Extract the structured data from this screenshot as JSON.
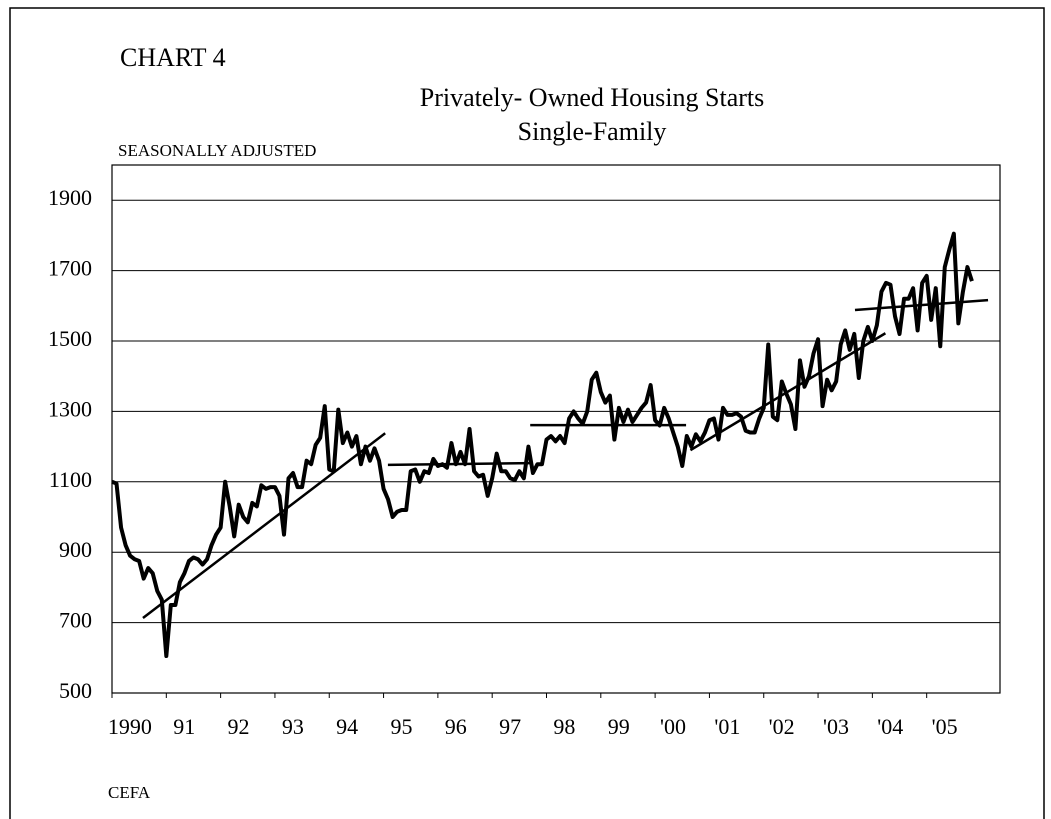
{
  "chart_data": {
    "type": "line",
    "label": "CHART 4",
    "title": "Privately- Owned Housing Starts",
    "subtitle": "Single-Family",
    "ylabel": "SEASONALLY ADJUSTED",
    "source": "CEFA",
    "xlim": [
      1990,
      2006.35
    ],
    "xticks": [
      {
        "value": 1990,
        "label": "1990"
      },
      {
        "value": 1991,
        "label": "91"
      },
      {
        "value": 1992,
        "label": "92"
      },
      {
        "value": 1993,
        "label": "93"
      },
      {
        "value": 1994,
        "label": "94"
      },
      {
        "value": 1995,
        "label": "95"
      },
      {
        "value": 1996,
        "label": "96"
      },
      {
        "value": 1997,
        "label": "97"
      },
      {
        "value": 1998,
        "label": "98"
      },
      {
        "value": 1999,
        "label": "99"
      },
      {
        "value": 2000,
        "label": "'00"
      },
      {
        "value": 2001,
        "label": "'01"
      },
      {
        "value": 2002,
        "label": "'02"
      },
      {
        "value": 2003,
        "label": "'03"
      },
      {
        "value": 2004,
        "label": "'04"
      },
      {
        "value": 2005,
        "label": "'05"
      }
    ],
    "ylim": [
      500,
      2000
    ],
    "yticks": [
      500,
      700,
      900,
      1100,
      1300,
      1500,
      1700,
      1900
    ],
    "grid": true,
    "color": "#000000",
    "x": [
      1990,
      1990.083,
      1990.167,
      1990.25,
      1990.333,
      1990.417,
      1990.5,
      1990.583,
      1990.667,
      1990.75,
      1990.833,
      1990.917,
      1991,
      1991.083,
      1991.167,
      1991.25,
      1991.333,
      1991.417,
      1991.5,
      1991.583,
      1991.667,
      1991.75,
      1991.833,
      1991.917,
      1992,
      1992.083,
      1992.167,
      1992.25,
      1992.333,
      1992.417,
      1992.5,
      1992.583,
      1992.667,
      1992.75,
      1992.833,
      1992.917,
      1993,
      1993.083,
      1993.167,
      1993.25,
      1993.333,
      1993.417,
      1993.5,
      1993.583,
      1993.667,
      1993.75,
      1993.833,
      1993.917,
      1994,
      1994.083,
      1994.167,
      1994.25,
      1994.333,
      1994.417,
      1994.5,
      1994.583,
      1994.667,
      1994.75,
      1994.833,
      1994.917,
      1995,
      1995.083,
      1995.167,
      1995.25,
      1995.333,
      1995.417,
      1995.5,
      1995.583,
      1995.667,
      1995.75,
      1995.833,
      1995.917,
      1996,
      1996.083,
      1996.167,
      1996.25,
      1996.333,
      1996.417,
      1996.5,
      1996.583,
      1996.667,
      1996.75,
      1996.833,
      1996.917,
      1997,
      1997.083,
      1997.167,
      1997.25,
      1997.333,
      1997.417,
      1997.5,
      1997.583,
      1997.667,
      1997.75,
      1997.833,
      1997.917,
      1998,
      1998.083,
      1998.167,
      1998.25,
      1998.333,
      1998.417,
      1998.5,
      1998.583,
      1998.667,
      1998.75,
      1998.833,
      1998.917,
      1999,
      1999.083,
      1999.167,
      1999.25,
      1999.333,
      1999.417,
      1999.5,
      1999.583,
      1999.667,
      1999.75,
      1999.833,
      1999.917,
      2000,
      2000.083,
      2000.167,
      2000.25,
      2000.333,
      2000.417,
      2000.5,
      2000.583,
      2000.667,
      2000.75,
      2000.833,
      2000.917,
      2001,
      2001.083,
      2001.167,
      2001.25,
      2001.333,
      2001.417,
      2001.5,
      2001.583,
      2001.667,
      2001.75,
      2001.833,
      2001.917,
      2002,
      2002.083,
      2002.167,
      2002.25,
      2002.333,
      2002.417,
      2002.5,
      2002.583,
      2002.667,
      2002.75,
      2002.833,
      2002.917,
      2003,
      2003.083,
      2003.167,
      2003.25,
      2003.333,
      2003.417,
      2003.5,
      2003.583,
      2003.667,
      2003.75,
      2003.833,
      2003.917,
      2004,
      2004.083,
      2004.167,
      2004.25,
      2004.333,
      2004.417,
      2004.5,
      2004.583,
      2004.667,
      2004.75,
      2004.833,
      2004.917,
      2005,
      2005.083,
      2005.167,
      2005.25,
      2005.333,
      2005.417,
      2005.5,
      2005.583,
      2005.667,
      2005.75,
      2005.833
    ],
    "values": [
      1100,
      1095,
      970,
      920,
      890,
      880,
      875,
      825,
      855,
      840,
      790,
      765,
      605,
      750,
      750,
      815,
      840,
      875,
      885,
      880,
      865,
      880,
      920,
      950,
      970,
      1100,
      1030,
      945,
      1035,
      1000,
      985,
      1040,
      1030,
      1090,
      1080,
      1085,
      1085,
      1060,
      950,
      1110,
      1125,
      1085,
      1085,
      1160,
      1150,
      1205,
      1225,
      1315,
      1135,
      1130,
      1305,
      1210,
      1240,
      1200,
      1230,
      1150,
      1200,
      1160,
      1195,
      1160,
      1080,
      1050,
      1000,
      1015,
      1020,
      1020,
      1130,
      1135,
      1100,
      1130,
      1125,
      1165,
      1145,
      1150,
      1140,
      1210,
      1150,
      1185,
      1150,
      1250,
      1130,
      1115,
      1120,
      1060,
      1110,
      1180,
      1130,
      1130,
      1110,
      1105,
      1130,
      1110,
      1200,
      1125,
      1150,
      1150,
      1220,
      1230,
      1215,
      1230,
      1210,
      1280,
      1300,
      1280,
      1265,
      1300,
      1390,
      1410,
      1355,
      1325,
      1345,
      1220,
      1310,
      1270,
      1305,
      1270,
      1290,
      1310,
      1325,
      1375,
      1275,
      1260,
      1310,
      1280,
      1240,
      1200,
      1145,
      1230,
      1200,
      1235,
      1215,
      1240,
      1275,
      1280,
      1220,
      1310,
      1290,
      1290,
      1295,
      1285,
      1245,
      1240,
      1240,
      1280,
      1310,
      1490,
      1285,
      1275,
      1385,
      1350,
      1320,
      1250,
      1445,
      1370,
      1400,
      1465,
      1505,
      1315,
      1390,
      1360,
      1385,
      1490,
      1530,
      1475,
      1520,
      1395,
      1500,
      1540,
      1500,
      1545,
      1640,
      1665,
      1660,
      1570,
      1520,
      1620,
      1620,
      1650,
      1530,
      1665,
      1685,
      1560,
      1650,
      1485,
      1710,
      1760,
      1805,
      1550,
      1640,
      1710,
      1670
    ],
    "trend_lines": [
      {
        "x": [
          1990.57,
          1995.03
        ],
        "values": [
          713,
          1238
        ]
      },
      {
        "x": [
          1995.08,
          1997.7
        ],
        "values": [
          1148,
          1153
        ]
      },
      {
        "x": [
          1997.7,
          2000.57
        ],
        "values": [
          1261,
          1261
        ]
      },
      {
        "x": [
          2000.65,
          2004.24
        ],
        "values": [
          1190,
          1522
        ]
      },
      {
        "x": [
          2003.68,
          2006.13
        ],
        "values": [
          1588,
          1616
        ]
      }
    ]
  }
}
